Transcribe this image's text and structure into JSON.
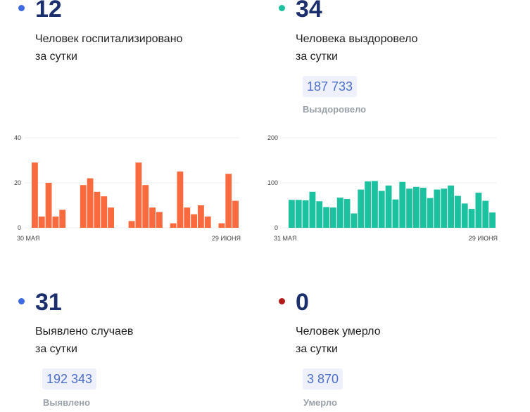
{
  "cards": {
    "hospitalized": {
      "value": "12",
      "line1": "Человек госпитализировано",
      "line2": "за сутки",
      "dot_color": "#3e6ae1"
    },
    "recovered": {
      "value": "34",
      "line1": "Человека выздоровело",
      "line2": "за сутки",
      "total": "187 733",
      "caption": "Выздоровело",
      "dot_color": "#1cc2a0"
    },
    "detected": {
      "value": "31",
      "line1": "Выявлено случаев",
      "line2": "за сутки",
      "total": "192 343",
      "caption": "Выявлено",
      "dot_color": "#3e6ae1"
    },
    "died": {
      "value": "0",
      "line1": "Человек умерло",
      "line2": "за сутки",
      "total": "3 870",
      "caption": "Умерло",
      "dot_color": "#b31b1b"
    }
  },
  "chart_data": [
    {
      "type": "bar",
      "color": "#f96a3e",
      "ylim": [
        0,
        40
      ],
      "yticks": [
        "40",
        "20",
        "0"
      ],
      "x_start_label": "30 МАЯ",
      "x_end_label": "29 ИЮНЯ",
      "values": [
        29,
        5,
        20,
        5,
        8,
        0,
        0,
        19,
        22,
        16,
        14,
        9,
        0,
        0,
        3,
        29,
        19,
        9,
        7,
        0,
        2,
        25,
        9,
        6,
        10,
        5,
        0,
        2,
        24,
        12
      ]
    },
    {
      "type": "bar",
      "color": "#1cc2a0",
      "ylim": [
        0,
        200
      ],
      "yticks": [
        "200",
        "100",
        "0"
      ],
      "x_start_label": "31 МАЯ",
      "x_end_label": "29 ИЮНЯ",
      "values": [
        62,
        62,
        61,
        80,
        59,
        46,
        45,
        67,
        64,
        32,
        85,
        103,
        104,
        82,
        94,
        63,
        102,
        87,
        91,
        89,
        66,
        85,
        87,
        94,
        71,
        54,
        42,
        78,
        60,
        34
      ]
    }
  ]
}
